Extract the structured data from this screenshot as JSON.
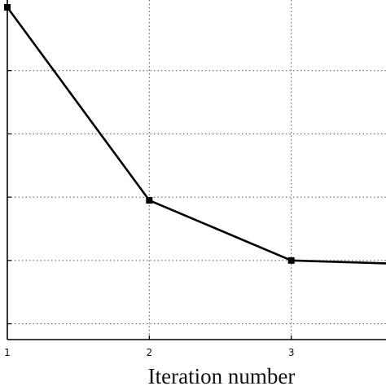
{
  "chart_data": {
    "type": "line",
    "xlabel": "Iteration number",
    "ylabel": "",
    "title": "",
    "x": [
      1,
      2,
      3,
      4
    ],
    "series": [
      {
        "values": [
          5.0,
          1.95,
          1.0,
          0.93
        ]
      }
    ],
    "xlim": [
      1,
      4
    ],
    "ylim": [
      -0.25,
      5.0
    ],
    "x_ticks": [
      1,
      2,
      3
    ],
    "x_tick_labels": [
      "1",
      "2",
      "3"
    ],
    "y_gridlines": [
      0.0,
      1.0,
      2.0,
      3.0,
      4.0
    ],
    "grid": true,
    "grid_style": "dotted",
    "line_color": "#000000",
    "marker": "square"
  }
}
